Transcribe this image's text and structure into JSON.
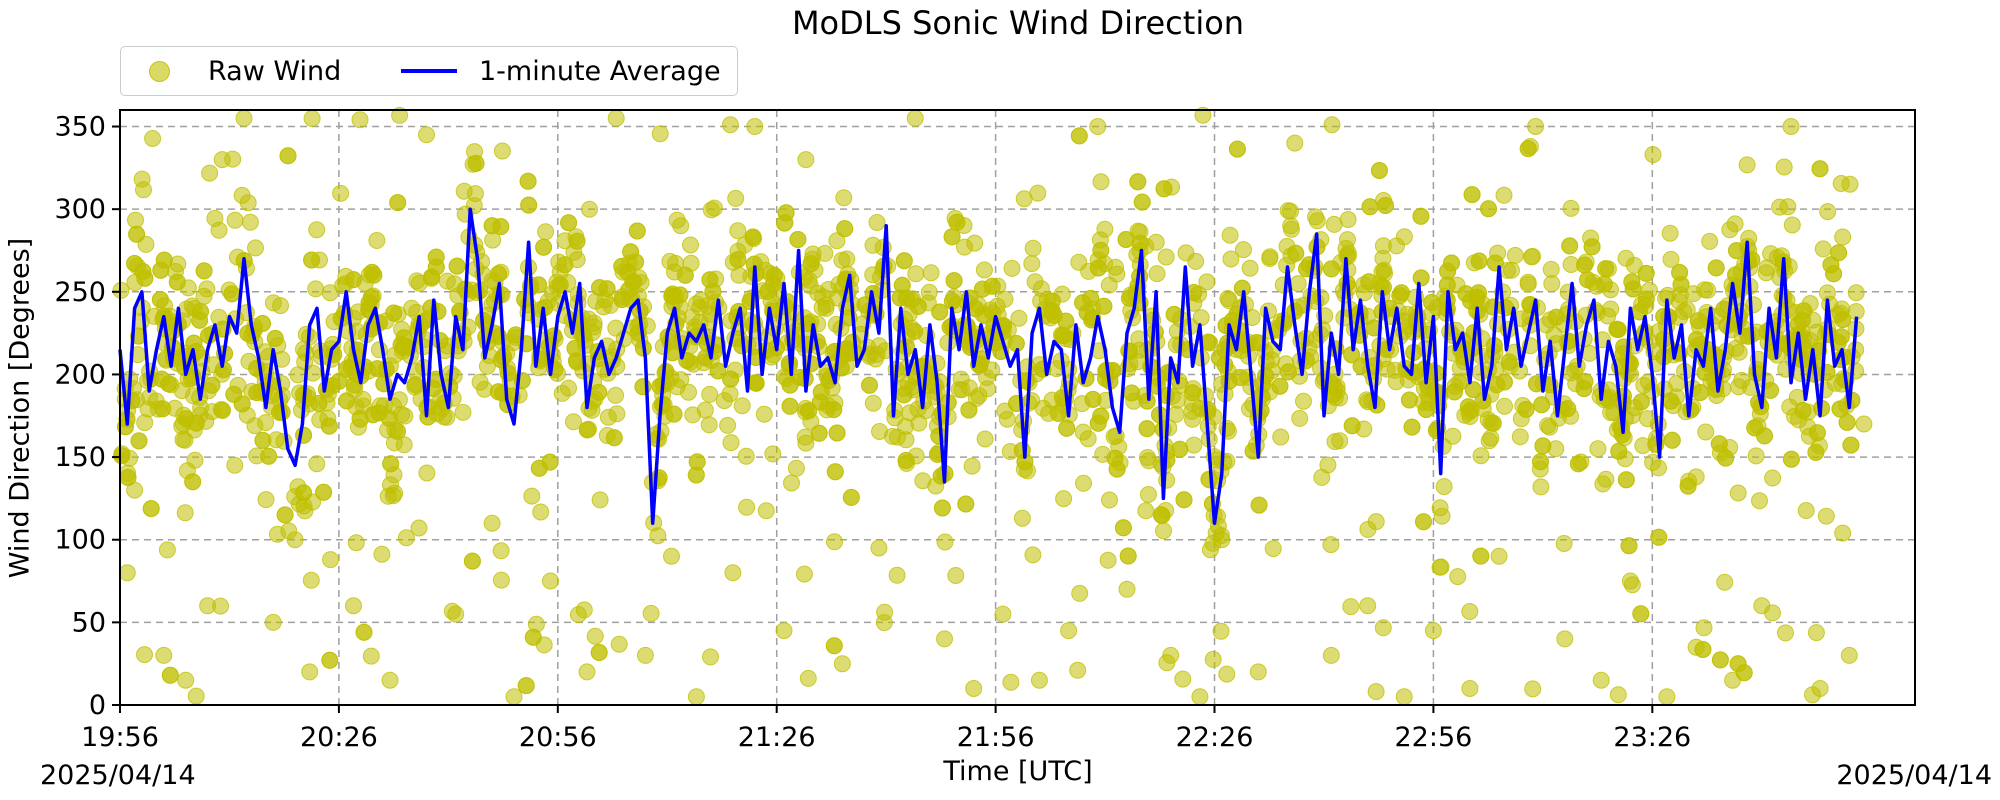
{
  "chart_data": {
    "type": "scatter",
    "title": "MoDLS Sonic Wind Direction",
    "xlabel": "Time [UTC]",
    "ylabel": "Wind Direction [Degrees]",
    "date_left": "2025/04/14",
    "date_right": "2025/04/14",
    "x_range": [
      "19:56",
      "00:02"
    ],
    "ylim": [
      0,
      360
    ],
    "y_ticks": [
      0,
      50,
      100,
      150,
      200,
      250,
      300,
      350
    ],
    "x_ticks": [
      "19:56",
      "20:26",
      "20:56",
      "21:26",
      "21:56",
      "22:26",
      "22:56",
      "23:26"
    ],
    "grid": true,
    "legend": {
      "placement": "top-left, above plot",
      "entries": [
        {
          "label": "Raw Wind",
          "marker": "circle",
          "color": "#bfbf00"
        },
        {
          "label": "1-minute Average",
          "marker": "line",
          "color": "#0000ff"
        }
      ]
    },
    "series": [
      {
        "name": "1-minute Average",
        "kind": "line",
        "color": "#0000ff",
        "points": [
          [
            "19:56",
            215
          ],
          [
            "19:57",
            170
          ],
          [
            "19:58",
            240
          ],
          [
            "19:59",
            250
          ],
          [
            "20:00",
            190
          ],
          [
            "20:01",
            215
          ],
          [
            "20:02",
            235
          ],
          [
            "20:03",
            205
          ],
          [
            "20:04",
            240
          ],
          [
            "20:05",
            200
          ],
          [
            "20:06",
            215
          ],
          [
            "20:07",
            185
          ],
          [
            "20:08",
            215
          ],
          [
            "20:09",
            230
          ],
          [
            "20:10",
            205
          ],
          [
            "20:11",
            235
          ],
          [
            "20:12",
            225
          ],
          [
            "20:13",
            270
          ],
          [
            "20:14",
            230
          ],
          [
            "20:15",
            210
          ],
          [
            "20:16",
            180
          ],
          [
            "20:17",
            215
          ],
          [
            "20:18",
            190
          ],
          [
            "20:19",
            155
          ],
          [
            "20:20",
            145
          ],
          [
            "20:21",
            170
          ],
          [
            "20:22",
            230
          ],
          [
            "20:23",
            240
          ],
          [
            "20:24",
            190
          ],
          [
            "20:25",
            215
          ],
          [
            "20:26",
            220
          ],
          [
            "20:27",
            250
          ],
          [
            "20:28",
            215
          ],
          [
            "20:29",
            195
          ],
          [
            "20:30",
            230
          ],
          [
            "20:31",
            240
          ],
          [
            "20:32",
            215
          ],
          [
            "20:33",
            185
          ],
          [
            "20:34",
            200
          ],
          [
            "20:35",
            195
          ],
          [
            "20:36",
            210
          ],
          [
            "20:37",
            235
          ],
          [
            "20:38",
            175
          ],
          [
            "20:39",
            245
          ],
          [
            "20:40",
            200
          ],
          [
            "20:41",
            180
          ],
          [
            "20:42",
            235
          ],
          [
            "20:43",
            215
          ],
          [
            "20:44",
            300
          ],
          [
            "20:45",
            270
          ],
          [
            "20:46",
            210
          ],
          [
            "20:47",
            230
          ],
          [
            "20:48",
            255
          ],
          [
            "20:49",
            185
          ],
          [
            "20:50",
            170
          ],
          [
            "20:51",
            215
          ],
          [
            "20:52",
            280
          ],
          [
            "20:53",
            205
          ],
          [
            "20:54",
            240
          ],
          [
            "20:55",
            200
          ],
          [
            "20:56",
            235
          ],
          [
            "20:57",
            250
          ],
          [
            "20:58",
            225
          ],
          [
            "20:59",
            255
          ],
          [
            "21:00",
            180
          ],
          [
            "21:01",
            210
          ],
          [
            "21:02",
            220
          ],
          [
            "21:03",
            200
          ],
          [
            "21:04",
            210
          ],
          [
            "21:05",
            225
          ],
          [
            "21:06",
            240
          ],
          [
            "21:07",
            245
          ],
          [
            "21:08",
            210
          ],
          [
            "21:09",
            110
          ],
          [
            "21:10",
            175
          ],
          [
            "21:11",
            225
          ],
          [
            "21:12",
            240
          ],
          [
            "21:13",
            210
          ],
          [
            "21:14",
            225
          ],
          [
            "21:15",
            220
          ],
          [
            "21:16",
            230
          ],
          [
            "21:17",
            210
          ],
          [
            "21:18",
            245
          ],
          [
            "21:19",
            205
          ],
          [
            "21:20",
            225
          ],
          [
            "21:21",
            240
          ],
          [
            "21:22",
            190
          ],
          [
            "21:23",
            265
          ],
          [
            "21:24",
            200
          ],
          [
            "21:25",
            240
          ],
          [
            "21:26",
            215
          ],
          [
            "21:27",
            255
          ],
          [
            "21:28",
            200
          ],
          [
            "21:29",
            275
          ],
          [
            "21:30",
            190
          ],
          [
            "21:31",
            230
          ],
          [
            "21:32",
            205
          ],
          [
            "21:33",
            210
          ],
          [
            "21:34",
            195
          ],
          [
            "21:35",
            240
          ],
          [
            "21:36",
            260
          ],
          [
            "21:37",
            205
          ],
          [
            "21:38",
            215
          ],
          [
            "21:39",
            250
          ],
          [
            "21:40",
            225
          ],
          [
            "21:41",
            290
          ],
          [
            "21:42",
            175
          ],
          [
            "21:43",
            240
          ],
          [
            "21:44",
            200
          ],
          [
            "21:45",
            215
          ],
          [
            "21:46",
            180
          ],
          [
            "21:47",
            230
          ],
          [
            "21:48",
            195
          ],
          [
            "21:49",
            135
          ],
          [
            "21:50",
            240
          ],
          [
            "21:51",
            215
          ],
          [
            "21:52",
            250
          ],
          [
            "21:53",
            205
          ],
          [
            "21:54",
            230
          ],
          [
            "21:55",
            210
          ],
          [
            "21:56",
            235
          ],
          [
            "21:57",
            220
          ],
          [
            "21:58",
            205
          ],
          [
            "21:59",
            215
          ],
          [
            "22:00",
            150
          ],
          [
            "22:01",
            225
          ],
          [
            "22:02",
            240
          ],
          [
            "22:03",
            200
          ],
          [
            "22:04",
            220
          ],
          [
            "22:05",
            215
          ],
          [
            "22:06",
            175
          ],
          [
            "22:07",
            230
          ],
          [
            "22:08",
            195
          ],
          [
            "22:09",
            210
          ],
          [
            "22:10",
            235
          ],
          [
            "22:11",
            215
          ],
          [
            "22:12",
            180
          ],
          [
            "22:13",
            165
          ],
          [
            "22:14",
            225
          ],
          [
            "22:15",
            240
          ],
          [
            "22:16",
            275
          ],
          [
            "22:17",
            185
          ],
          [
            "22:18",
            250
          ],
          [
            "22:19",
            125
          ],
          [
            "22:20",
            210
          ],
          [
            "22:21",
            195
          ],
          [
            "22:22",
            265
          ],
          [
            "22:23",
            205
          ],
          [
            "22:24",
            230
          ],
          [
            "22:25",
            170
          ],
          [
            "22:26",
            110
          ],
          [
            "22:27",
            140
          ],
          [
            "22:28",
            230
          ],
          [
            "22:29",
            215
          ],
          [
            "22:30",
            250
          ],
          [
            "22:31",
            200
          ],
          [
            "22:32",
            150
          ],
          [
            "22:33",
            240
          ],
          [
            "22:34",
            220
          ],
          [
            "22:35",
            215
          ],
          [
            "22:36",
            265
          ],
          [
            "22:37",
            230
          ],
          [
            "22:38",
            200
          ],
          [
            "22:39",
            250
          ],
          [
            "22:40",
            285
          ],
          [
            "22:41",
            175
          ],
          [
            "22:42",
            225
          ],
          [
            "22:43",
            200
          ],
          [
            "22:44",
            270
          ],
          [
            "22:45",
            215
          ],
          [
            "22:46",
            245
          ],
          [
            "22:47",
            205
          ],
          [
            "22:48",
            180
          ],
          [
            "22:49",
            250
          ],
          [
            "22:50",
            215
          ],
          [
            "22:51",
            240
          ],
          [
            "22:52",
            205
          ],
          [
            "22:53",
            200
          ],
          [
            "22:54",
            255
          ],
          [
            "22:55",
            195
          ],
          [
            "22:56",
            235
          ],
          [
            "22:57",
            140
          ],
          [
            "22:58",
            250
          ],
          [
            "22:59",
            215
          ],
          [
            "23:00",
            225
          ],
          [
            "23:01",
            195
          ],
          [
            "23:02",
            240
          ],
          [
            "23:03",
            185
          ],
          [
            "23:04",
            205
          ],
          [
            "23:05",
            265
          ],
          [
            "23:06",
            215
          ],
          [
            "23:07",
            240
          ],
          [
            "23:08",
            205
          ],
          [
            "23:09",
            225
          ],
          [
            "23:10",
            245
          ],
          [
            "23:11",
            190
          ],
          [
            "23:12",
            220
          ],
          [
            "23:13",
            175
          ],
          [
            "23:14",
            215
          ],
          [
            "23:15",
            255
          ],
          [
            "23:16",
            205
          ],
          [
            "23:17",
            230
          ],
          [
            "23:18",
            245
          ],
          [
            "23:19",
            185
          ],
          [
            "23:20",
            220
          ],
          [
            "23:21",
            205
          ],
          [
            "23:22",
            165
          ],
          [
            "23:23",
            240
          ],
          [
            "23:24",
            215
          ],
          [
            "23:25",
            235
          ],
          [
            "23:26",
            200
          ],
          [
            "23:27",
            150
          ],
          [
            "23:28",
            245
          ],
          [
            "23:29",
            210
          ],
          [
            "23:30",
            230
          ],
          [
            "23:31",
            175
          ],
          [
            "23:32",
            215
          ],
          [
            "23:33",
            205
          ],
          [
            "23:34",
            240
          ],
          [
            "23:35",
            190
          ],
          [
            "23:36",
            215
          ],
          [
            "23:37",
            255
          ],
          [
            "23:38",
            225
          ],
          [
            "23:39",
            280
          ],
          [
            "23:40",
            200
          ],
          [
            "23:41",
            180
          ],
          [
            "23:42",
            240
          ],
          [
            "23:43",
            210
          ],
          [
            "23:44",
            270
          ],
          [
            "23:45",
            195
          ],
          [
            "23:46",
            225
          ],
          [
            "23:47",
            185
          ],
          [
            "23:48",
            215
          ],
          [
            "23:49",
            175
          ],
          [
            "23:50",
            245
          ],
          [
            "23:51",
            205
          ],
          [
            "23:52",
            215
          ],
          [
            "23:53",
            180
          ],
          [
            "23:54",
            235
          ]
        ]
      },
      {
        "name": "Raw Wind",
        "kind": "scatter",
        "color": "#bfbf00",
        "opacity": 0.6,
        "distribution": "dense scatter around 1-minute average, spanning 0-360 degrees",
        "sample_points": [
          [
            "19:57",
            80
          ],
          [
            "19:58",
            130
          ],
          [
            "20:02",
            30
          ],
          [
            "20:05",
            15
          ],
          [
            "20:08",
            60
          ],
          [
            "20:10",
            330
          ],
          [
            "20:13",
            355
          ],
          [
            "20:17",
            50
          ],
          [
            "20:20",
            100
          ],
          [
            "20:22",
            20
          ],
          [
            "20:28",
            60
          ],
          [
            "20:33",
            15
          ],
          [
            "20:38",
            345
          ],
          [
            "20:42",
            55
          ],
          [
            "20:47",
            110
          ],
          [
            "20:50",
            5
          ],
          [
            "20:55",
            75
          ],
          [
            "21:00",
            20
          ],
          [
            "21:04",
            355
          ],
          [
            "21:08",
            30
          ],
          [
            "21:15",
            5
          ],
          [
            "21:20",
            80
          ],
          [
            "21:23",
            350
          ],
          [
            "21:27",
            45
          ],
          [
            "21:30",
            330
          ],
          [
            "21:35",
            25
          ],
          [
            "21:40",
            95
          ],
          [
            "21:45",
            355
          ],
          [
            "21:49",
            40
          ],
          [
            "21:53",
            10
          ],
          [
            "21:57",
            55
          ],
          [
            "22:02",
            15
          ],
          [
            "22:06",
            45
          ],
          [
            "22:10",
            350
          ],
          [
            "22:14",
            70
          ],
          [
            "22:20",
            30
          ],
          [
            "22:24",
            5
          ],
          [
            "22:27",
            100
          ],
          [
            "22:32",
            20
          ],
          [
            "22:37",
            340
          ],
          [
            "22:42",
            30
          ],
          [
            "22:47",
            60
          ],
          [
            "22:52",
            5
          ],
          [
            "22:56",
            45
          ],
          [
            "23:01",
            10
          ],
          [
            "23:05",
            90
          ],
          [
            "23:10",
            350
          ],
          [
            "23:14",
            40
          ],
          [
            "23:19",
            15
          ],
          [
            "23:23",
            75
          ],
          [
            "23:28",
            5
          ],
          [
            "23:32",
            35
          ],
          [
            "23:37",
            15
          ],
          [
            "23:41",
            60
          ],
          [
            "23:45",
            350
          ],
          [
            "23:49",
            10
          ],
          [
            "23:53",
            30
          ],
          [
            "23:55",
            170
          ]
        ]
      }
    ]
  }
}
